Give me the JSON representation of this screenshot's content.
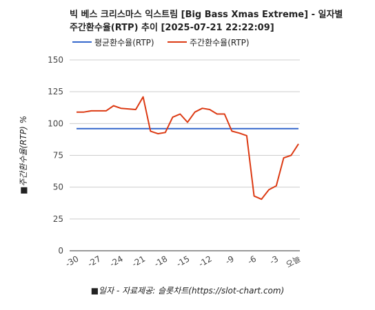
{
  "chart_data": {
    "type": "line",
    "title": "빅 베스 크리스마스 익스트림 [Big Bass Xmas Extreme] - 일자별 주간환수율(RTP) 추이 [2025-07-21 22:22:09]",
    "title_lines": [
      "빅 베스 크리스마스 익스트림 [Big Bass Xmas Extreme] - 일자별",
      "주간환수율(RTP) 추이 [2025-07-21 22:22:09]"
    ],
    "xlabel": "■일자 - 자료제공: 슬롯차트(https://slot-chart.com)",
    "ylabel": "■주간환수율(RTP) %",
    "ylim": [
      0,
      150
    ],
    "yticks": [
      0,
      25,
      50,
      75,
      100,
      125,
      150
    ],
    "xticks": [
      "-30",
      "-27",
      "-24",
      "-21",
      "-18",
      "-15",
      "-12",
      "-9",
      "-6",
      "-3",
      "오늘"
    ],
    "x": [
      -30,
      -29,
      -28,
      -27,
      -26,
      -25,
      -24,
      -23,
      -22,
      -21,
      -20,
      -19,
      -18,
      -17,
      -16,
      -15,
      -14,
      -13,
      -12,
      -11,
      -10,
      -9,
      -8,
      -7,
      -6,
      -5,
      -4,
      -3,
      -2,
      -1,
      0
    ],
    "grid": true,
    "legend_position": "top-left",
    "series": [
      {
        "name": "평균환수율(RTP)",
        "color": "#3366cc",
        "values": [
          96,
          96,
          96,
          96,
          96,
          96,
          96,
          96,
          96,
          96,
          96,
          96,
          96,
          96,
          96,
          96,
          96,
          96,
          96,
          96,
          96,
          96,
          96,
          96,
          96,
          96,
          96,
          96,
          96,
          96,
          96
        ]
      },
      {
        "name": "주간환수율(RTP)",
        "color": "#dc3912",
        "values": [
          109,
          109,
          110,
          110,
          110,
          114,
          112,
          111.5,
          111,
          121,
          94,
          92,
          93,
          105,
          107.5,
          101,
          109,
          112,
          111,
          107.5,
          107.5,
          94,
          92.5,
          90.5,
          43,
          40.5,
          48,
          51,
          73,
          75,
          84
        ]
      }
    ]
  }
}
